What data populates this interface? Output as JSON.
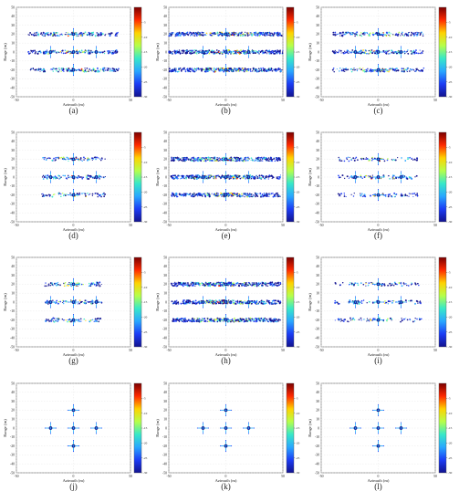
{
  "figure": {
    "xlabel": "Azimuth (m)",
    "ylabel": "Range (m)",
    "x_ticks": [
      -50,
      0,
      50
    ],
    "y_ticks": [
      50,
      40,
      30,
      20,
      10,
      0,
      -10,
      -20,
      -30,
      -40,
      -50
    ],
    "colorbar_ticks": [
      -5,
      -10,
      -15,
      -20,
      -25,
      -30
    ],
    "colorbar_range": [
      -30,
      0
    ],
    "colorbar_colors": [
      "#7a0000",
      "#ff2a00",
      "#ffd200",
      "#b6ff4a",
      "#38e8c8",
      "#2aa7ff",
      "#1c3cf5",
      "#12128f"
    ],
    "grid": true
  },
  "chart_data": [
    {
      "panel": "(a)",
      "type": "heatmap",
      "targets": [
        {
          "x": 0,
          "y": 20
        },
        {
          "x": -20,
          "y": 0
        },
        {
          "x": 0,
          "y": 0
        },
        {
          "x": 20,
          "y": 0
        },
        {
          "x": 0,
          "y": -20
        }
      ],
      "range_lines": [
        20,
        0,
        -20
      ],
      "azimuth_extent": 40,
      "clutter": "moderate",
      "xlabel": "Azimuth (m)",
      "ylabel": "Range (m)",
      "xlim": [
        -50,
        50
      ],
      "ylim": [
        -50,
        50
      ]
    },
    {
      "panel": "(b)",
      "type": "heatmap",
      "targets": [
        {
          "x": 0,
          "y": 20
        },
        {
          "x": -20,
          "y": 0
        },
        {
          "x": 0,
          "y": 0
        },
        {
          "x": 20,
          "y": 0
        },
        {
          "x": 0,
          "y": -20
        }
      ],
      "range_lines": [
        20,
        0,
        -20
      ],
      "azimuth_extent": 50,
      "clutter": "heavy",
      "xlabel": "Azimuth (m)",
      "ylabel": "Range (m)",
      "xlim": [
        -50,
        50
      ],
      "ylim": [
        -50,
        50
      ]
    },
    {
      "panel": "(c)",
      "type": "heatmap",
      "targets": [
        {
          "x": 0,
          "y": 20
        },
        {
          "x": -20,
          "y": 0
        },
        {
          "x": 0,
          "y": 0
        },
        {
          "x": 20,
          "y": 0
        },
        {
          "x": 0,
          "y": -20
        }
      ],
      "range_lines": [
        20,
        0,
        -20
      ],
      "azimuth_extent": 40,
      "clutter": "moderate",
      "xlabel": "Azimuth (m)",
      "ylabel": "Range (m)",
      "xlim": [
        -50,
        50
      ],
      "ylim": [
        -50,
        50
      ]
    },
    {
      "panel": "(d)",
      "type": "heatmap",
      "targets": [
        {
          "x": 0,
          "y": 20
        },
        {
          "x": -20,
          "y": 0
        },
        {
          "x": 0,
          "y": 0
        },
        {
          "x": 20,
          "y": 0
        },
        {
          "x": 0,
          "y": -20
        }
      ],
      "range_lines": [
        20,
        0,
        -20
      ],
      "azimuth_extent": 28,
      "clutter": "light",
      "xlabel": "Azimuth (m)",
      "ylabel": "Range (m)",
      "xlim": [
        -50,
        50
      ],
      "ylim": [
        -50,
        50
      ]
    },
    {
      "panel": "(e)",
      "type": "heatmap",
      "targets": [
        {
          "x": 0,
          "y": 20
        },
        {
          "x": -20,
          "y": 0
        },
        {
          "x": 0,
          "y": 0
        },
        {
          "x": 20,
          "y": 0
        },
        {
          "x": 0,
          "y": -20
        }
      ],
      "range_lines": [
        20,
        0,
        -20
      ],
      "azimuth_extent": 48,
      "clutter": "heavy",
      "xlabel": "Azimuth (m)",
      "ylabel": "Range (m)",
      "xlim": [
        -50,
        50
      ],
      "ylim": [
        -50,
        50
      ]
    },
    {
      "panel": "(f)",
      "type": "heatmap",
      "targets": [
        {
          "x": 0,
          "y": 20
        },
        {
          "x": -20,
          "y": 0
        },
        {
          "x": 0,
          "y": 0
        },
        {
          "x": 20,
          "y": 0
        },
        {
          "x": 0,
          "y": -20
        }
      ],
      "range_lines": [
        20,
        0,
        -20
      ],
      "azimuth_extent": 35,
      "clutter": "light",
      "xlabel": "Azimuth (m)",
      "ylabel": "Range (m)",
      "xlim": [
        -50,
        50
      ],
      "ylim": [
        -50,
        50
      ]
    },
    {
      "panel": "(g)",
      "type": "heatmap",
      "targets": [
        {
          "x": 0,
          "y": 20
        },
        {
          "x": -20,
          "y": 0
        },
        {
          "x": 0,
          "y": 0
        },
        {
          "x": 20,
          "y": 0
        },
        {
          "x": 0,
          "y": -20
        }
      ],
      "range_lines": [
        20,
        0,
        -20
      ],
      "azimuth_extent": 25,
      "clutter": "light",
      "xlabel": "Azimuth (m)",
      "ylabel": "Range (m)",
      "xlim": [
        -50,
        50
      ],
      "ylim": [
        -50,
        50
      ]
    },
    {
      "panel": "(h)",
      "type": "heatmap",
      "targets": [
        {
          "x": 0,
          "y": 20
        },
        {
          "x": -20,
          "y": 0
        },
        {
          "x": 0,
          "y": 0
        },
        {
          "x": 20,
          "y": 0
        },
        {
          "x": 0,
          "y": -20
        }
      ],
      "range_lines": [
        20,
        0,
        -20
      ],
      "azimuth_extent": 48,
      "clutter": "heavy",
      "xlabel": "Azimuth (m)",
      "ylabel": "Range (m)",
      "xlim": [
        -50,
        50
      ],
      "ylim": [
        -50,
        50
      ]
    },
    {
      "panel": "(i)",
      "type": "heatmap",
      "targets": [
        {
          "x": 0,
          "y": 20
        },
        {
          "x": -20,
          "y": 0
        },
        {
          "x": 0,
          "y": 0
        },
        {
          "x": 20,
          "y": 0
        },
        {
          "x": 0,
          "y": -20
        }
      ],
      "range_lines": [
        20,
        0,
        -20
      ],
      "azimuth_extent": 38,
      "clutter": "light",
      "xlabel": "Azimuth (m)",
      "ylabel": "Range (m)",
      "xlim": [
        -50,
        50
      ],
      "ylim": [
        -50,
        50
      ]
    },
    {
      "panel": "(j)",
      "type": "heatmap",
      "targets": [
        {
          "x": 0,
          "y": 20
        },
        {
          "x": -20,
          "y": 0
        },
        {
          "x": 0,
          "y": 0
        },
        {
          "x": 20,
          "y": 0
        },
        {
          "x": 0,
          "y": -20
        }
      ],
      "range_lines": [],
      "azimuth_extent": 0,
      "clutter": "none",
      "xlabel": "Azimuth (m)",
      "ylabel": "Range (m)",
      "xlim": [
        -50,
        50
      ],
      "ylim": [
        -50,
        50
      ]
    },
    {
      "panel": "(k)",
      "type": "heatmap",
      "targets": [
        {
          "x": 0,
          "y": 20
        },
        {
          "x": -20,
          "y": 0
        },
        {
          "x": 0,
          "y": 0
        },
        {
          "x": 20,
          "y": 0
        },
        {
          "x": 0,
          "y": -20
        }
      ],
      "range_lines": [],
      "azimuth_extent": 0,
      "clutter": "none",
      "xlabel": "Azimuth (m)",
      "ylabel": "Range (m)",
      "xlim": [
        -50,
        50
      ],
      "ylim": [
        -50,
        50
      ]
    },
    {
      "panel": "(l)",
      "type": "heatmap",
      "targets": [
        {
          "x": 0,
          "y": 20
        },
        {
          "x": -20,
          "y": 0
        },
        {
          "x": 0,
          "y": 0
        },
        {
          "x": 20,
          "y": 0
        },
        {
          "x": 0,
          "y": -20
        }
      ],
      "range_lines": [],
      "azimuth_extent": 0,
      "clutter": "none",
      "xlabel": "Azimuth (m)",
      "ylabel": "Range (m)",
      "xlim": [
        -50,
        50
      ],
      "ylim": [
        -50,
        50
      ]
    }
  ]
}
